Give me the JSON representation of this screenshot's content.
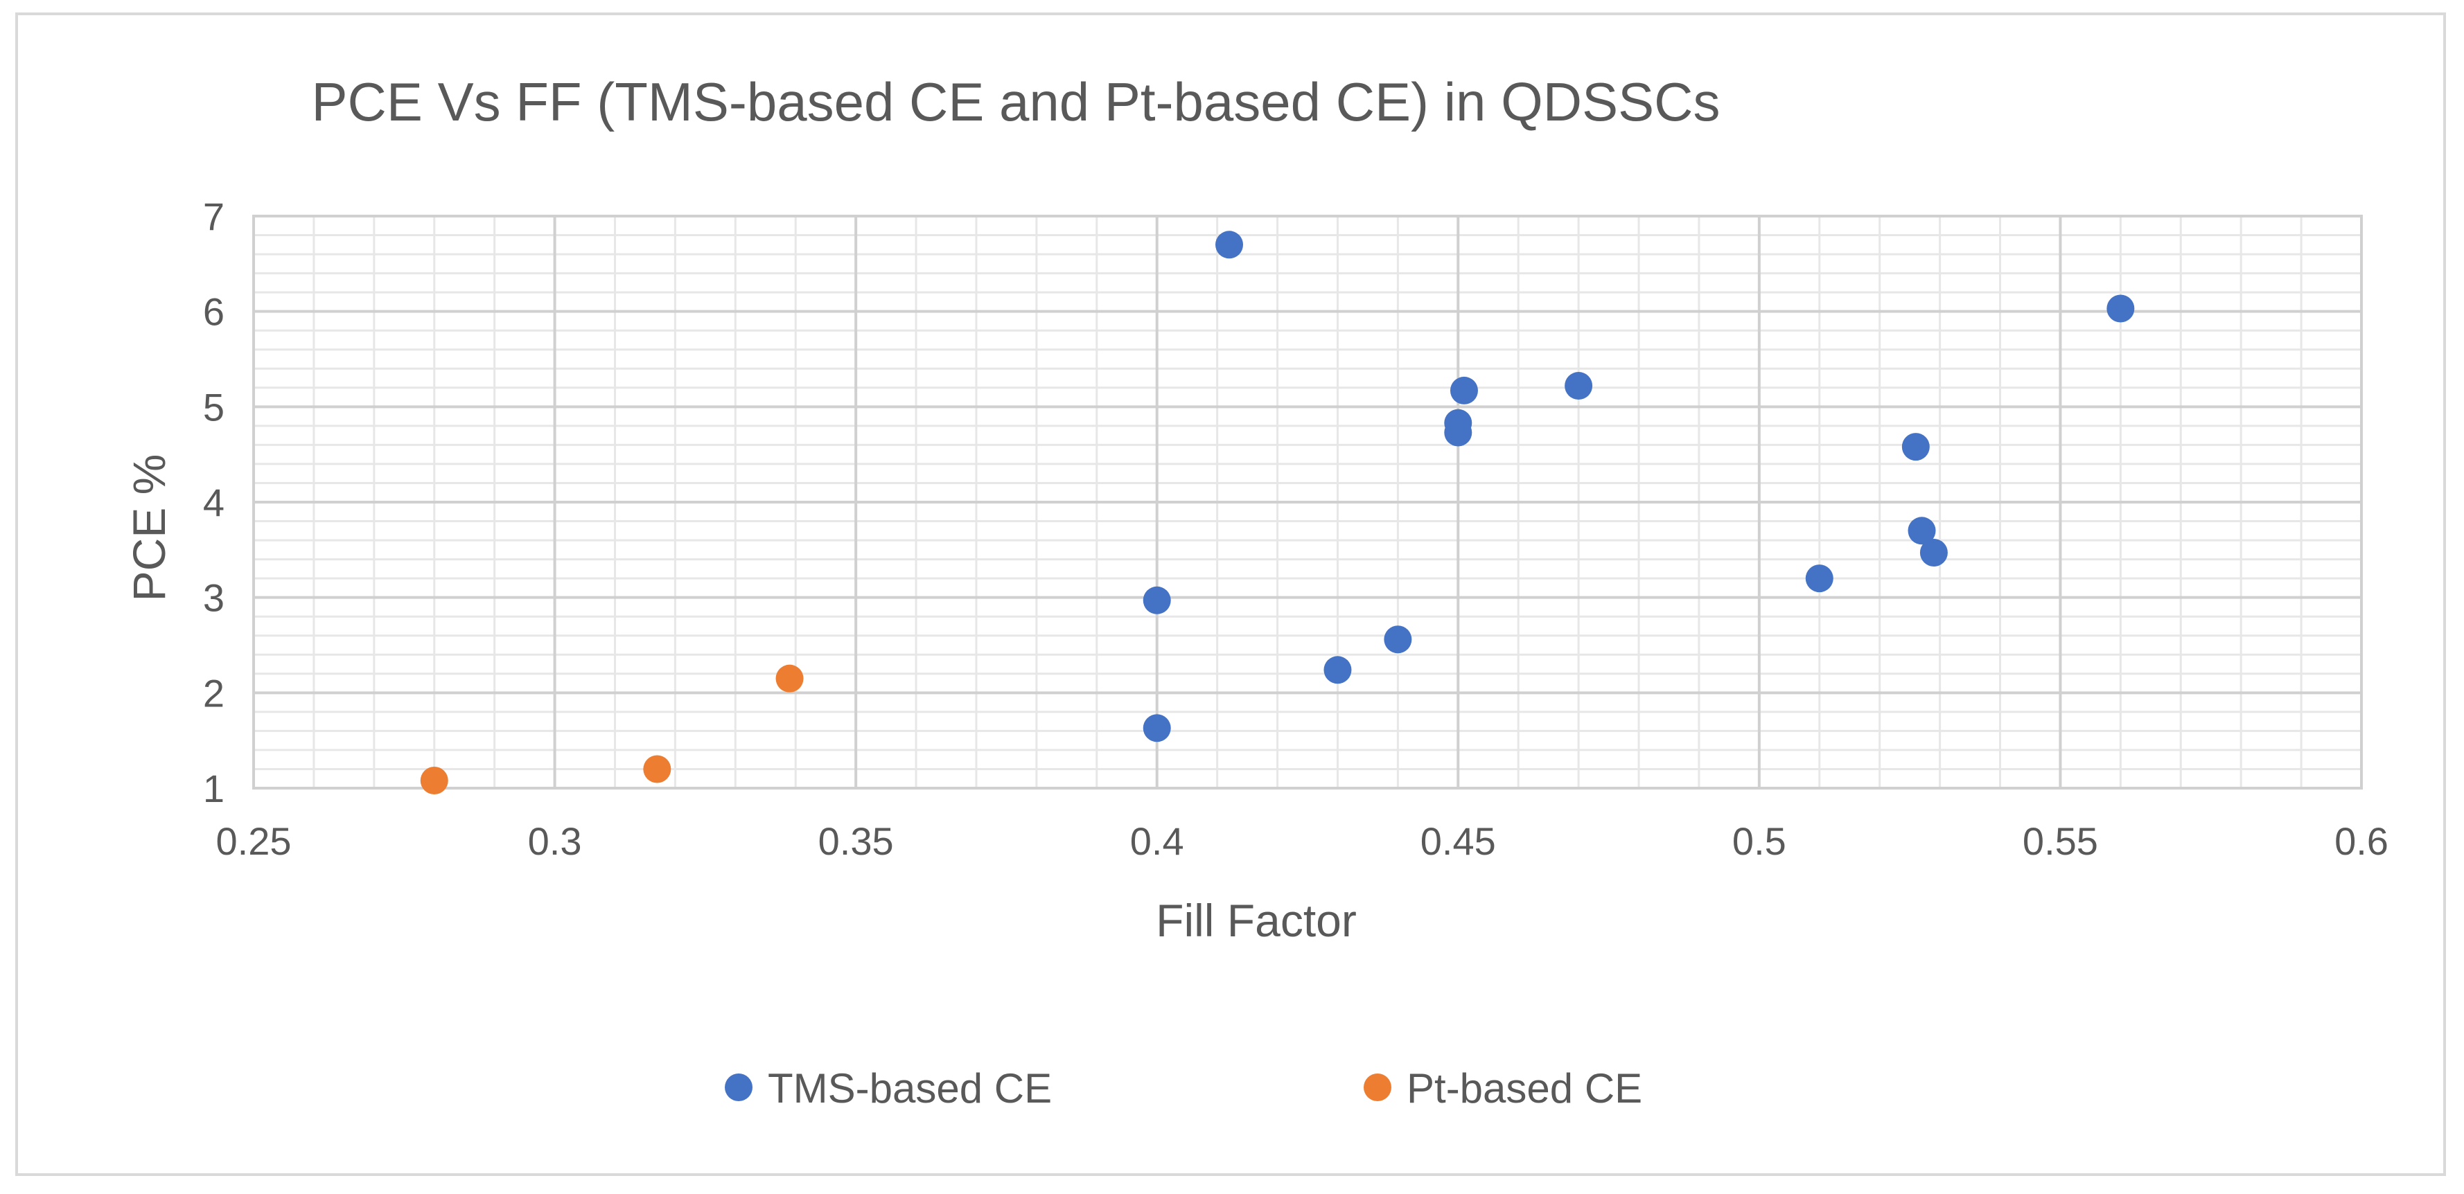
{
  "chart_data": {
    "type": "scatter",
    "title": "PCE Vs FF (TMS-based CE and Pt-based CE) in QDSSCs",
    "xlabel": "Fill Factor",
    "ylabel": "PCE %",
    "xlim": [
      0.25,
      0.6
    ],
    "ylim": [
      1,
      7
    ],
    "x_ticks": [
      "0.25",
      "0.3",
      "0.35",
      "0.4",
      "0.45",
      "0.5",
      "0.55",
      "0.6"
    ],
    "y_ticks": [
      "1",
      "2",
      "3",
      "4",
      "5",
      "6",
      "7"
    ],
    "grid": true,
    "legend_position": "bottom",
    "series": [
      {
        "name": "TMS-based CE",
        "color": "#4472c4",
        "points": [
          {
            "x": 0.412,
            "y": 6.7
          },
          {
            "x": 0.56,
            "y": 6.03
          },
          {
            "x": 0.451,
            "y": 5.17
          },
          {
            "x": 0.47,
            "y": 5.22
          },
          {
            "x": 0.45,
            "y": 4.83
          },
          {
            "x": 0.45,
            "y": 4.73
          },
          {
            "x": 0.526,
            "y": 4.58
          },
          {
            "x": 0.527,
            "y": 3.7
          },
          {
            "x": 0.529,
            "y": 3.47
          },
          {
            "x": 0.51,
            "y": 3.2
          },
          {
            "x": 0.4,
            "y": 2.97
          },
          {
            "x": 0.44,
            "y": 2.56
          },
          {
            "x": 0.43,
            "y": 2.24
          },
          {
            "x": 0.4,
            "y": 1.63
          }
        ]
      },
      {
        "name": "Pt-based CE",
        "color": "#ed7d31",
        "points": [
          {
            "x": 0.339,
            "y": 2.15
          },
          {
            "x": 0.317,
            "y": 1.2
          },
          {
            "x": 0.28,
            "y": 1.08
          }
        ]
      }
    ]
  }
}
